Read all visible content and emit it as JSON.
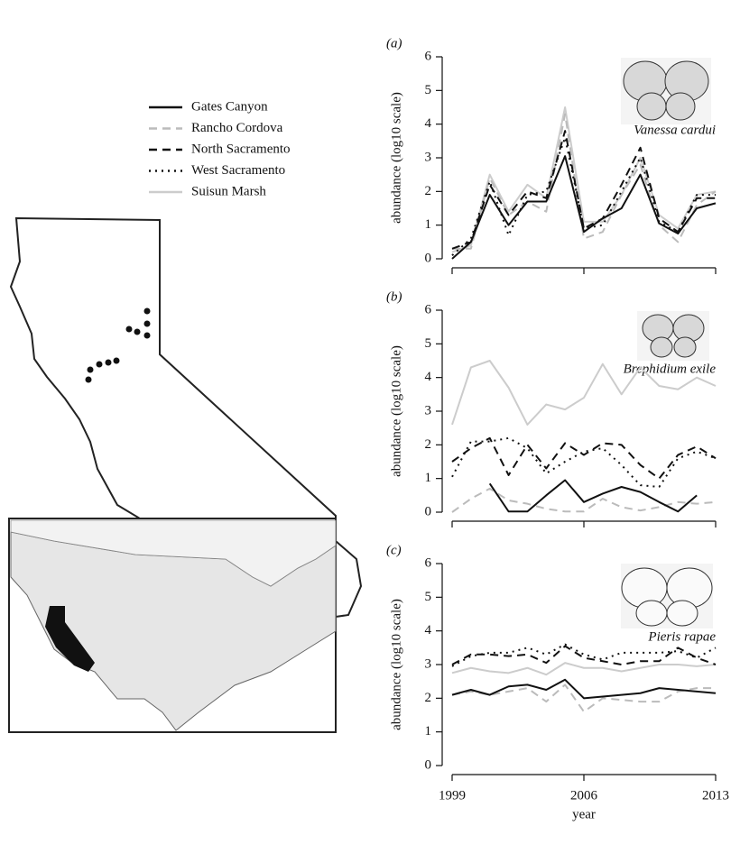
{
  "chart_data": [
    {
      "type": "line",
      "panel": "(a)",
      "annotation": "Vanessa cardui",
      "ylabel": "abundance (log10 scale)",
      "x": [
        1999,
        2000,
        2001,
        2002,
        2003,
        2004,
        2005,
        2006,
        2007,
        2008,
        2009,
        2010,
        2011,
        2012,
        2013
      ],
      "xlim": [
        1999,
        2013
      ],
      "xticks": [
        1999,
        2006,
        2013
      ],
      "show_xtick_labels": false,
      "ylim": [
        0,
        6
      ],
      "yticks": [
        0,
        1,
        2,
        3,
        4,
        5,
        6
      ],
      "series": [
        {
          "name": "Gates Canyon",
          "color": "#111111",
          "dash": "solid",
          "values": [
            0,
            0.5,
            1.9,
            1.0,
            1.7,
            1.7,
            3.05,
            0.8,
            1.2,
            1.5,
            2.5,
            1.05,
            0.75,
            1.5,
            1.65
          ]
        },
        {
          "name": "Rancho Cordova",
          "color": "#bbbbbb",
          "dash": "dashed",
          "values": [
            0.3,
            0.3,
            2.4,
            1.3,
            1.7,
            1.4,
            4.3,
            0.6,
            0.8,
            1.9,
            2.8,
            1.0,
            0.5,
            1.6,
            2.0
          ]
        },
        {
          "name": "North Sacramento",
          "color": "#111111",
          "dash": "dashed",
          "values": [
            0.3,
            0.5,
            2.2,
            1.3,
            2.0,
            1.8,
            3.8,
            0.9,
            1.2,
            2.2,
            3.3,
            1.2,
            0.8,
            1.8,
            1.8
          ]
        },
        {
          "name": "West Sacramento",
          "color": "#111111",
          "dash": "dotted",
          "values": [
            0.1,
            0.6,
            2.3,
            0.7,
            1.9,
            2.0,
            3.6,
            0.9,
            1.0,
            2.0,
            3.0,
            1.1,
            0.8,
            1.9,
            1.9
          ]
        },
        {
          "name": "Suisun Marsh",
          "color": "#cccccc",
          "dash": "solid",
          "values": [
            0.2,
            0.4,
            2.5,
            1.4,
            2.2,
            1.8,
            4.5,
            1.1,
            1.1,
            1.9,
            3.0,
            1.3,
            0.9,
            1.9,
            2.0
          ]
        }
      ]
    },
    {
      "type": "line",
      "panel": "(b)",
      "annotation": "Brephidium exile",
      "ylabel": "abundance (log10 scale)",
      "x": [
        1999,
        2000,
        2001,
        2002,
        2003,
        2004,
        2005,
        2006,
        2007,
        2008,
        2009,
        2010,
        2011,
        2012,
        2013
      ],
      "xlim": [
        1999,
        2013
      ],
      "xticks": [
        1999,
        2006,
        2013
      ],
      "show_xtick_labels": false,
      "ylim": [
        0,
        6
      ],
      "yticks": [
        0,
        1,
        2,
        3,
        4,
        5,
        6
      ],
      "series": [
        {
          "name": "Gates Canyon",
          "color": "#111111",
          "dash": "solid",
          "values": [
            null,
            null,
            0.85,
            0.02,
            0.02,
            0.5,
            0.95,
            0.3,
            0.55,
            0.75,
            0.6,
            0.3,
            0.02,
            0.5,
            null
          ]
        },
        {
          "name": "Rancho Cordova",
          "color": "#bbbbbb",
          "dash": "dashed",
          "values": [
            0,
            0.4,
            0.7,
            0.35,
            0.25,
            0.1,
            0.02,
            0.02,
            0.4,
            0.15,
            0.05,
            0.15,
            0.3,
            0.25,
            0.3
          ]
        },
        {
          "name": "North Sacramento",
          "color": "#111111",
          "dash": "dashed",
          "values": [
            1.5,
            1.9,
            2.2,
            1.1,
            2.0,
            1.3,
            2.05,
            1.7,
            2.05,
            2.0,
            1.4,
            1.0,
            1.7,
            1.95,
            1.6
          ]
        },
        {
          "name": "West Sacramento",
          "color": "#111111",
          "dash": "dotted",
          "values": [
            1.05,
            2.1,
            2.1,
            2.2,
            1.9,
            1.15,
            1.5,
            1.8,
            1.9,
            1.4,
            0.8,
            0.75,
            1.6,
            1.8,
            1.6
          ]
        },
        {
          "name": "Suisun Marsh",
          "color": "#cccccc",
          "dash": "solid",
          "values": [
            2.6,
            4.3,
            4.5,
            3.7,
            2.6,
            3.2,
            3.05,
            3.4,
            4.4,
            3.5,
            4.3,
            3.75,
            3.65,
            4.0,
            3.75
          ]
        }
      ]
    },
    {
      "type": "line",
      "panel": "(c)",
      "annotation": "Pieris rapae",
      "ylabel": "abundance (log10 scale)",
      "xlabel": "year",
      "x": [
        1999,
        2000,
        2001,
        2002,
        2003,
        2004,
        2005,
        2006,
        2007,
        2008,
        2009,
        2010,
        2011,
        2012,
        2013
      ],
      "xlim": [
        1999,
        2013
      ],
      "xticks": [
        1999,
        2006,
        2013
      ],
      "show_xtick_labels": true,
      "ylim": [
        0,
        6
      ],
      "yticks": [
        0,
        1,
        2,
        3,
        4,
        5,
        6
      ],
      "series": [
        {
          "name": "Gates Canyon",
          "color": "#111111",
          "dash": "solid",
          "values": [
            2.1,
            2.25,
            2.1,
            2.35,
            2.4,
            2.25,
            2.55,
            2.0,
            2.05,
            2.1,
            2.15,
            2.3,
            2.25,
            2.2,
            2.15
          ]
        },
        {
          "name": "Rancho Cordova",
          "color": "#bbbbbb",
          "dash": "dashed",
          "values": [
            2.1,
            2.2,
            2.1,
            2.2,
            2.3,
            1.9,
            2.4,
            1.6,
            2.0,
            1.95,
            1.9,
            1.9,
            2.2,
            2.3,
            2.3
          ]
        },
        {
          "name": "North Sacramento",
          "color": "#111111",
          "dash": "dashed",
          "values": [
            3.0,
            3.3,
            3.3,
            3.25,
            3.3,
            3.05,
            3.55,
            3.2,
            3.1,
            3.0,
            3.1,
            3.1,
            3.5,
            3.2,
            3.0
          ]
        },
        {
          "name": "West Sacramento",
          "color": "#111111",
          "dash": "dotted",
          "values": [
            2.95,
            3.25,
            3.35,
            3.35,
            3.5,
            3.3,
            3.6,
            3.3,
            3.15,
            3.35,
            3.35,
            3.35,
            3.4,
            3.2,
            3.5
          ]
        },
        {
          "name": "Suisun Marsh",
          "color": "#cccccc",
          "dash": "solid",
          "values": [
            2.75,
            2.9,
            2.8,
            2.75,
            2.9,
            2.7,
            3.05,
            2.9,
            2.9,
            2.8,
            2.9,
            3.0,
            3.0,
            2.95,
            3.0
          ]
        }
      ]
    }
  ]
}
